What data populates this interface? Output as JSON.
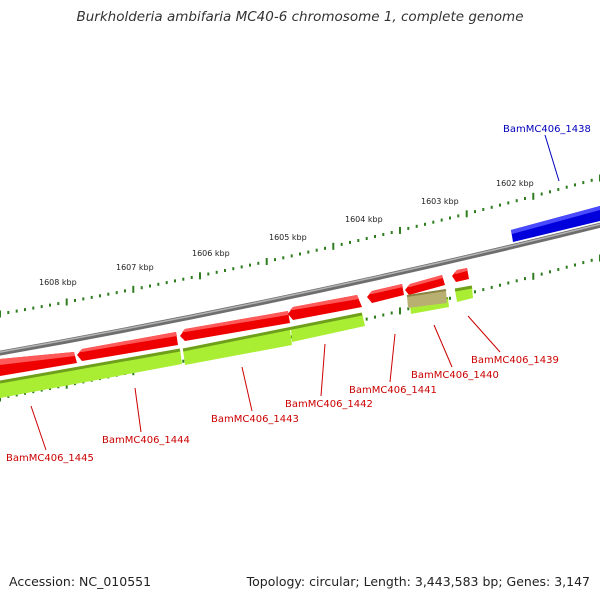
{
  "title": "Burkholderia ambifaria MC40-6 chromosome 1, complete genome",
  "accession": "Accession: NC_010551",
  "summary": "Topology: circular; Length: 3,443,583 bp; Genes: 3,147",
  "colors": {
    "backbone": "#8a8a8a",
    "gene_red": "#ee0000",
    "gene_blue": "#0000dd",
    "feature_green": "#aaee33",
    "feature_olive": "#b8b070",
    "tick_green": "#2e7d1e",
    "label_red": "#cc0000",
    "label_blue": "#0000bb"
  },
  "scale_labels": [
    "1602 kbp",
    "1603 kbp",
    "1604 kbp",
    "1605 kbp",
    "1606 kbp",
    "1607 kbp",
    "1608 kbp"
  ],
  "genes": [
    {
      "label": "BamMC406_1438",
      "strand": "forward",
      "color": "blue"
    },
    {
      "label": "BamMC406_1439",
      "strand": "reverse",
      "color": "red"
    },
    {
      "label": "BamMC406_1440",
      "strand": "reverse",
      "color": "red"
    },
    {
      "label": "BamMC406_1441",
      "strand": "reverse",
      "color": "red"
    },
    {
      "label": "BamMC406_1442",
      "strand": "reverse",
      "color": "red"
    },
    {
      "label": "BamMC406_1443",
      "strand": "reverse",
      "color": "red"
    },
    {
      "label": "BamMC406_1444",
      "strand": "reverse",
      "color": "red"
    },
    {
      "label": "BamMC406_1445",
      "strand": "reverse",
      "color": "red"
    }
  ]
}
